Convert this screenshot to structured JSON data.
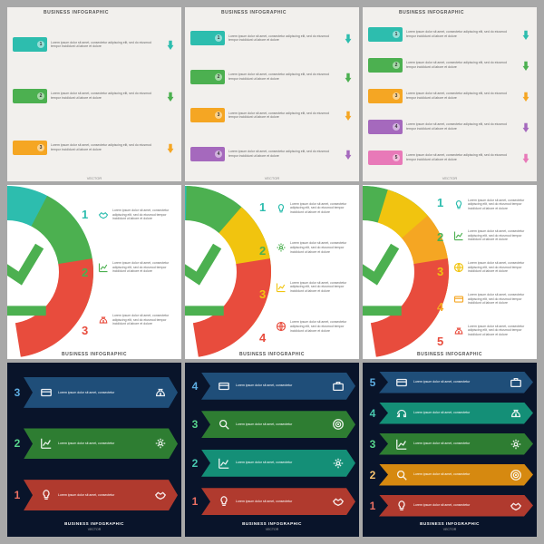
{
  "common": {
    "title": "BUSINESS INFOGRAPHIC",
    "vector": "VECTOR",
    "lorem_short": "Lorem ipsum dolor sit amet, consectetur",
    "lorem_long": "Lorem ipsum dolor sit amet, consectetur adipiscing elit, sed do eiusmod tempor incididunt ut labore et dolore"
  },
  "palette": {
    "teal": "#2dbdae",
    "green": "#4cb050",
    "orange": "#f5a623",
    "red": "#e84c3d",
    "blue": "#2c7fb8",
    "purple": "#a569bd",
    "yellow": "#f1c40f",
    "pink": "#e879b8",
    "darkblue": "#1f4e79",
    "darkgreen": "#2e7d32",
    "darkred": "#b03a2e",
    "darkteal": "#148f77",
    "darkorange": "#d68910"
  },
  "row1": {
    "panels": [
      {
        "rows": [
          {
            "color": "#2dbdae",
            "n": "1"
          },
          {
            "color": "#4cb050",
            "n": "2"
          },
          {
            "color": "#f5a623",
            "n": "3"
          }
        ]
      },
      {
        "rows": [
          {
            "color": "#2dbdae",
            "n": "1"
          },
          {
            "color": "#4cb050",
            "n": "2"
          },
          {
            "color": "#f5a623",
            "n": "3"
          },
          {
            "color": "#a569bd",
            "n": "4"
          }
        ]
      },
      {
        "rows": [
          {
            "color": "#2dbdae",
            "n": "1"
          },
          {
            "color": "#4cb050",
            "n": "2"
          },
          {
            "color": "#f5a623",
            "n": "3"
          },
          {
            "color": "#a569bd",
            "n": "4"
          },
          {
            "color": "#e879b8",
            "n": "5"
          }
        ]
      }
    ]
  },
  "row2": {
    "panels": [
      {
        "segs": [
          {
            "color": "#2dbdae",
            "n": "1",
            "nc": "#2dbdae",
            "icon": "handshake"
          },
          {
            "color": "#4cb050",
            "n": "2",
            "nc": "#4cb050",
            "icon": "chart"
          },
          {
            "color": "#e84c3d",
            "n": "3",
            "nc": "#e84c3d",
            "icon": "moneybag"
          }
        ]
      },
      {
        "segs": [
          {
            "color": "#2dbdae",
            "n": "1",
            "nc": "#2dbdae",
            "icon": "bulb"
          },
          {
            "color": "#4cb050",
            "n": "2",
            "nc": "#4cb050",
            "icon": "gear"
          },
          {
            "color": "#f1c40f",
            "n": "3",
            "nc": "#f1c40f",
            "icon": "chart"
          },
          {
            "color": "#e84c3d",
            "n": "4",
            "nc": "#e84c3d",
            "icon": "globe"
          }
        ]
      },
      {
        "segs": [
          {
            "color": "#2dbdae",
            "n": "1",
            "nc": "#2dbdae",
            "icon": "bulb"
          },
          {
            "color": "#4cb050",
            "n": "2",
            "nc": "#4cb050",
            "icon": "chart"
          },
          {
            "color": "#f1c40f",
            "n": "3",
            "nc": "#f1c40f",
            "icon": "globe"
          },
          {
            "color": "#f5a623",
            "n": "4",
            "nc": "#f5a623",
            "icon": "card"
          },
          {
            "color": "#e84c3d",
            "n": "5",
            "nc": "#e84c3d",
            "icon": "moneybag"
          }
        ]
      }
    ]
  },
  "row3": {
    "panels": [
      {
        "bands": [
          {
            "bg": "#1f4e79",
            "n": "3",
            "nc": "#5dade2",
            "i1": "card",
            "i2": "moneybag"
          },
          {
            "bg": "#2e7d32",
            "n": "2",
            "nc": "#58d68d",
            "i1": "chart",
            "i2": "gear"
          },
          {
            "bg": "#b03a2e",
            "n": "1",
            "nc": "#ec7063",
            "i1": "bulb",
            "i2": "handshake"
          }
        ]
      },
      {
        "bands": [
          {
            "bg": "#1f4e79",
            "n": "4",
            "nc": "#5dade2",
            "i1": "card",
            "i2": "case"
          },
          {
            "bg": "#2e7d32",
            "n": "3",
            "nc": "#58d68d",
            "i1": "search",
            "i2": "target"
          },
          {
            "bg": "#148f77",
            "n": "2",
            "nc": "#48c9b0",
            "i1": "chart",
            "i2": "gear"
          },
          {
            "bg": "#b03a2e",
            "n": "1",
            "nc": "#ec7063",
            "i1": "bulb",
            "i2": "handshake"
          }
        ]
      },
      {
        "bands": [
          {
            "bg": "#1f4e79",
            "n": "5",
            "nc": "#5dade2",
            "i1": "card",
            "i2": "case"
          },
          {
            "bg": "#148f77",
            "n": "4",
            "nc": "#48c9b0",
            "i1": "headset",
            "i2": "moneybag"
          },
          {
            "bg": "#2e7d32",
            "n": "3",
            "nc": "#58d68d",
            "i1": "chart",
            "i2": "gear"
          },
          {
            "bg": "#d68910",
            "n": "2",
            "nc": "#f8c471",
            "i1": "search",
            "i2": "target"
          },
          {
            "bg": "#b03a2e",
            "n": "1",
            "nc": "#ec7063",
            "i1": "bulb",
            "i2": "handshake"
          }
        ]
      }
    ]
  }
}
